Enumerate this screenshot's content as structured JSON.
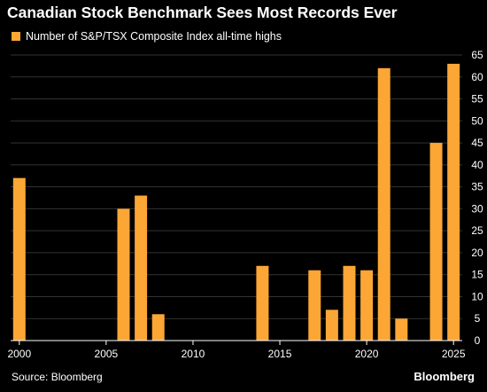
{
  "title": "Canadian Stock Benchmark Sees Most Records Ever",
  "legend": {
    "label": "Number of S&P/TSX Composite Index all-time highs",
    "color": "#fba635"
  },
  "source": "Source: Bloomberg",
  "brand": "Bloomberg",
  "colors": {
    "background": "#000000",
    "bar": "#fba635",
    "grid": "#333333",
    "axis": "#ffffff"
  },
  "chart_data": {
    "type": "bar",
    "x": [
      2000,
      2006,
      2007,
      2008,
      2014,
      2017,
      2018,
      2019,
      2020,
      2021,
      2022,
      2024,
      2025
    ],
    "values": [
      37,
      30,
      33,
      6,
      17,
      16,
      7,
      17,
      16,
      62,
      5,
      45,
      63
    ],
    "xlim": [
      1999.5,
      2025.5
    ],
    "ylim": [
      0,
      65
    ],
    "x_ticks": [
      "2000",
      "2005",
      "2010",
      "2015",
      "2020",
      "2025"
    ],
    "y_ticks": [
      "0",
      "5",
      "10",
      "15",
      "20",
      "25",
      "30",
      "35",
      "40",
      "45",
      "50",
      "55",
      "60",
      "65"
    ],
    "y_axis_side": "right",
    "grid": true,
    "legend_placement": "top-left"
  }
}
